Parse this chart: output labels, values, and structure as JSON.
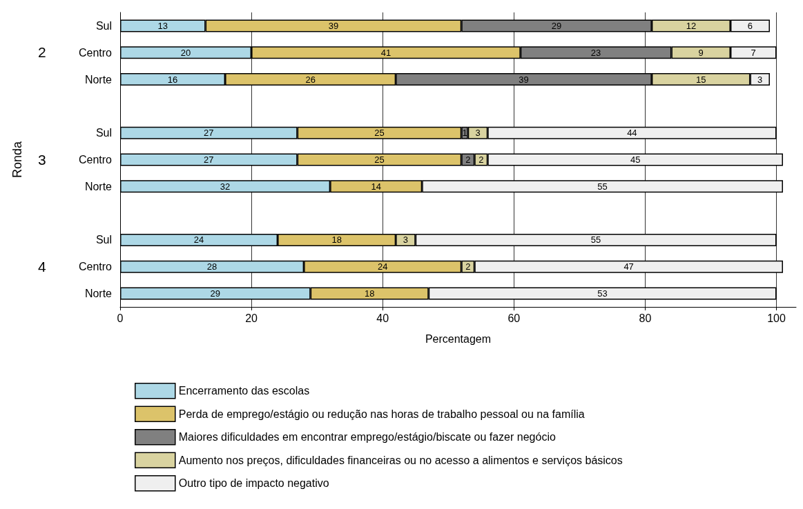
{
  "chart_data": {
    "type": "bar",
    "orientation": "horizontal",
    "stacked": true,
    "xlabel": "Percentagem",
    "ylabel": "Ronda",
    "categories": [
      "Sul",
      "Centro",
      "Norte",
      null,
      "Sul",
      "Centro",
      "Norte",
      null,
      "Sul",
      "Centro",
      "Norte"
    ],
    "annotations": [
      "2",
      "3",
      "4"
    ],
    "series": [
      {
        "name": "Encerramento das escolas",
        "color": "#add8e6",
        "values": [
          13,
          20,
          16,
          null,
          27,
          27,
          32,
          null,
          24,
          28,
          29
        ]
      },
      {
        "name": "Perda de emprego/estágio ou redução nas horas de trabalho pessoal ou na família",
        "color": "#dcc36a",
        "values": [
          39,
          41,
          26,
          null,
          25,
          25,
          14,
          null,
          18,
          24,
          18
        ]
      },
      {
        "name": "Maiores dificuldades em encontrar emprego/estágio/biscate ou fazer negócio",
        "color": "#808080",
        "values": [
          29,
          23,
          39,
          null,
          1,
          2,
          null,
          null,
          null,
          null,
          null
        ]
      },
      {
        "name": "Aumento nos preços, dificuldades financeiras ou no acesso a alimentos e serviços básicos",
        "color": "#d9d3a0",
        "values": [
          12,
          9,
          15,
          null,
          3,
          2,
          null,
          null,
          3,
          2,
          null
        ]
      },
      {
        "name": "Outro tipo de impacto negativo",
        "color": "#efefef",
        "values": [
          6,
          7,
          3,
          null,
          44,
          45,
          55,
          null,
          55,
          47,
          53
        ]
      }
    ],
    "xlim": [
      0,
      103
    ],
    "xticks": [
      0,
      20,
      40,
      60,
      80,
      100
    ],
    "grid": "x",
    "legend": "bottom",
    "data_labels": true
  }
}
